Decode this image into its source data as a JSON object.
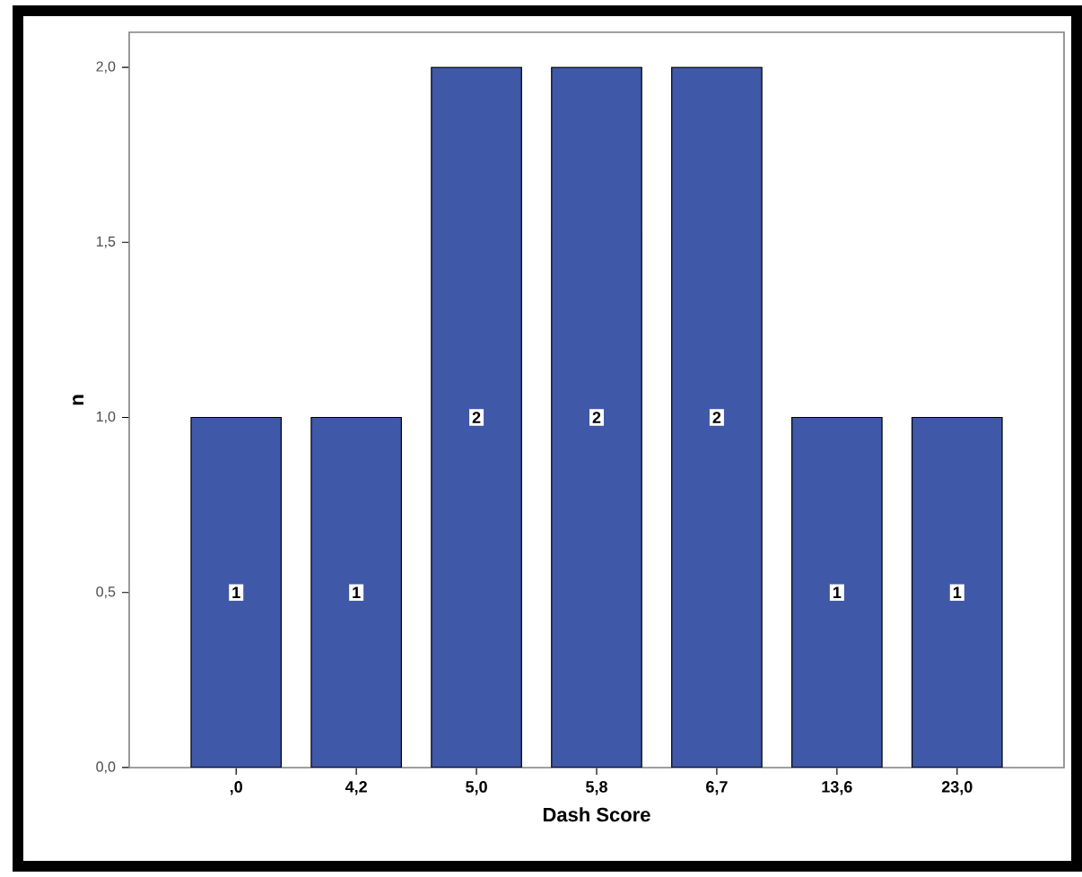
{
  "chart_data": {
    "type": "bar",
    "xlabel": "Dash Score",
    "ylabel": "n",
    "categories": [
      ",0",
      "4,2",
      "5,0",
      "5,8",
      "6,7",
      "13,6",
      "23,0"
    ],
    "values": [
      1,
      1,
      2,
      2,
      2,
      1,
      1
    ],
    "color": "#3f58a8",
    "data_labels": true,
    "ylim": [
      0,
      2.1
    ],
    "yticks": [
      {
        "value": 0,
        "label": "0,0"
      },
      {
        "value": 0.5,
        "label": "0,5"
      },
      {
        "value": 1,
        "label": "1,0"
      },
      {
        "value": 1.5,
        "label": "1,5"
      },
      {
        "value": 2,
        "label": "2,0"
      }
    ],
    "grid": false
  }
}
